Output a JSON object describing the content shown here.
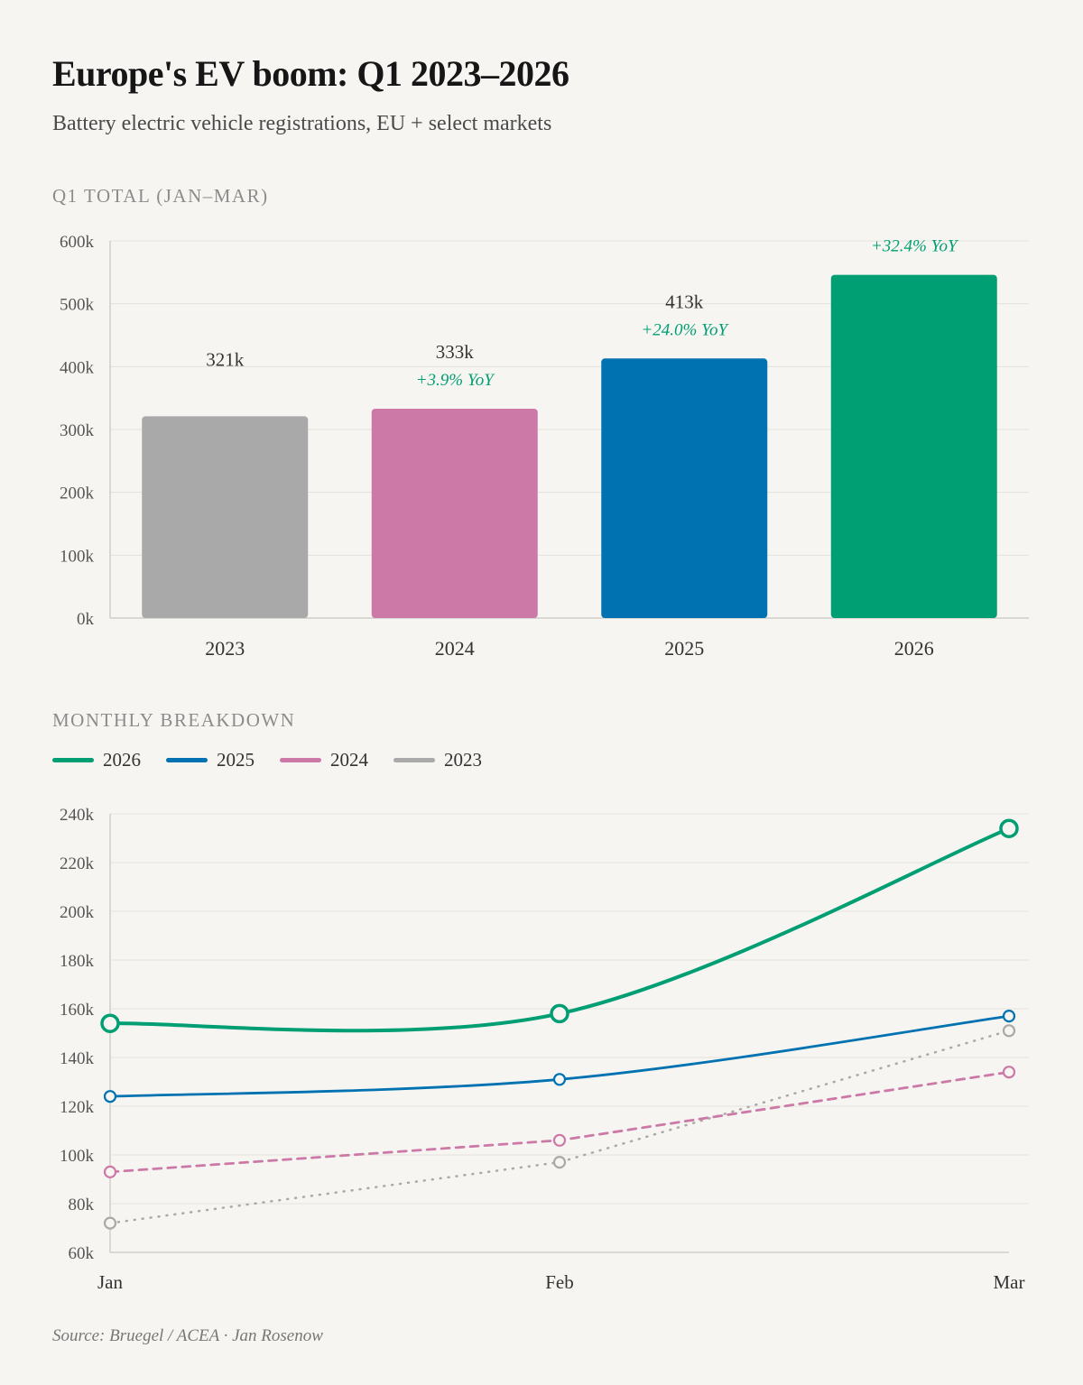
{
  "title": "Europe's EV boom: Q1 2023–2026",
  "subtitle": "Battery electric vehicle registrations, EU + select markets",
  "source": "Source: Bruegel / ACEA  ·  Jan Rosenow",
  "colors": {
    "2023": "#a9a9a9",
    "2024": "#cc79a7",
    "2025": "#0072b2",
    "2026": "#009e73",
    "grid": "#e4e2dc",
    "axis": "#c8c6c0",
    "yoy": "#009e73"
  },
  "chart_data": [
    {
      "type": "bar",
      "section_label": "Q1 TOTAL (JAN–MAR)",
      "categories": [
        "2023",
        "2024",
        "2025",
        "2026"
      ],
      "values": [
        321,
        333,
        413,
        546
      ],
      "value_labels": [
        "321k",
        "333k",
        "413k",
        ""
      ],
      "yoy_labels": [
        "",
        "+3.9% YoY",
        "+24.0% YoY",
        "+32.4% YoY"
      ],
      "ylim": [
        0,
        600
      ],
      "yticks": [
        0,
        100,
        200,
        300,
        400,
        500,
        600
      ],
      "ytick_labels": [
        "0k",
        "100k",
        "200k",
        "300k",
        "400k",
        "500k",
        "600k"
      ],
      "grid": true
    },
    {
      "type": "line",
      "section_label": "MONTHLY BREAKDOWN",
      "x": [
        "Jan",
        "Feb",
        "Mar"
      ],
      "series": [
        {
          "name": "2026",
          "values": [
            154,
            158,
            234
          ],
          "style": "solid"
        },
        {
          "name": "2025",
          "values": [
            124,
            131,
            157
          ],
          "style": "solid"
        },
        {
          "name": "2024",
          "values": [
            93,
            106,
            134
          ],
          "style": "dashed"
        },
        {
          "name": "2023",
          "values": [
            72,
            97,
            151
          ],
          "style": "dotted"
        }
      ],
      "ylim": [
        60,
        240
      ],
      "yticks": [
        60,
        80,
        100,
        120,
        140,
        160,
        180,
        200,
        220,
        240
      ],
      "ytick_labels": [
        "60k",
        "80k",
        "100k",
        "120k",
        "140k",
        "160k",
        "180k",
        "200k",
        "220k",
        "240k"
      ],
      "legend_position": "top-left",
      "grid": true
    }
  ]
}
